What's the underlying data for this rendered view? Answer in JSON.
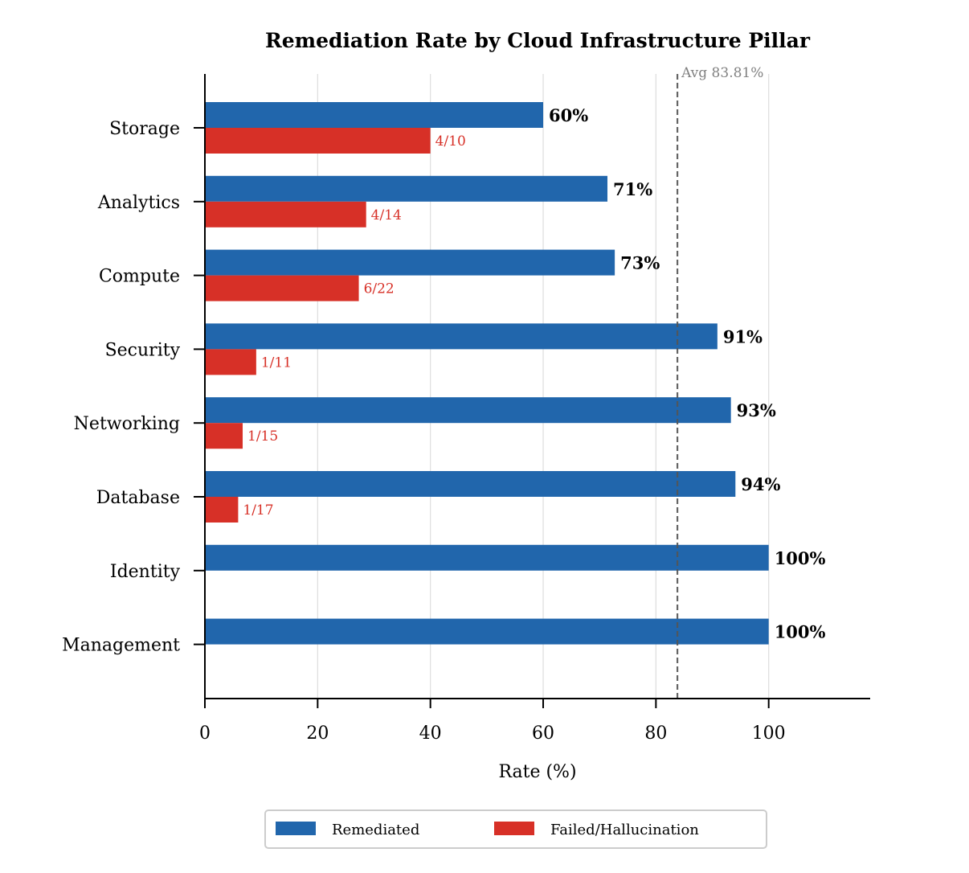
{
  "chart_data": {
    "type": "bar",
    "orientation": "horizontal",
    "title": "Remediation Rate by Cloud Infrastructure Pillar",
    "xlabel": "Rate (%)",
    "ylabel": "",
    "xlim": [
      0,
      118
    ],
    "xticks": [
      0,
      20,
      40,
      60,
      80,
      100
    ],
    "grid": "x",
    "categories": [
      "Storage",
      "Analytics",
      "Compute",
      "Security",
      "Networking",
      "Database",
      "Identity",
      "Management"
    ],
    "series": [
      {
        "name": "Remediated",
        "color": "#2166ac",
        "values": [
          60.0,
          71.4,
          72.7,
          90.9,
          93.3,
          94.1,
          100.0,
          100.0
        ],
        "labels": [
          "60%",
          "71%",
          "73%",
          "91%",
          "93%",
          "94%",
          "100%",
          "100%"
        ]
      },
      {
        "name": "Failed/Hallucination",
        "color": "#d73027",
        "values": [
          40.0,
          28.6,
          27.3,
          9.1,
          6.7,
          5.9,
          0,
          0
        ],
        "labels": [
          "4/10",
          "4/14",
          "6/22",
          "1/11",
          "1/15",
          "1/17",
          "",
          ""
        ]
      }
    ],
    "reference_line": {
      "value": 83.81,
      "label": "Avg 83.81%"
    },
    "legend": {
      "placement": "bottom-center"
    }
  }
}
